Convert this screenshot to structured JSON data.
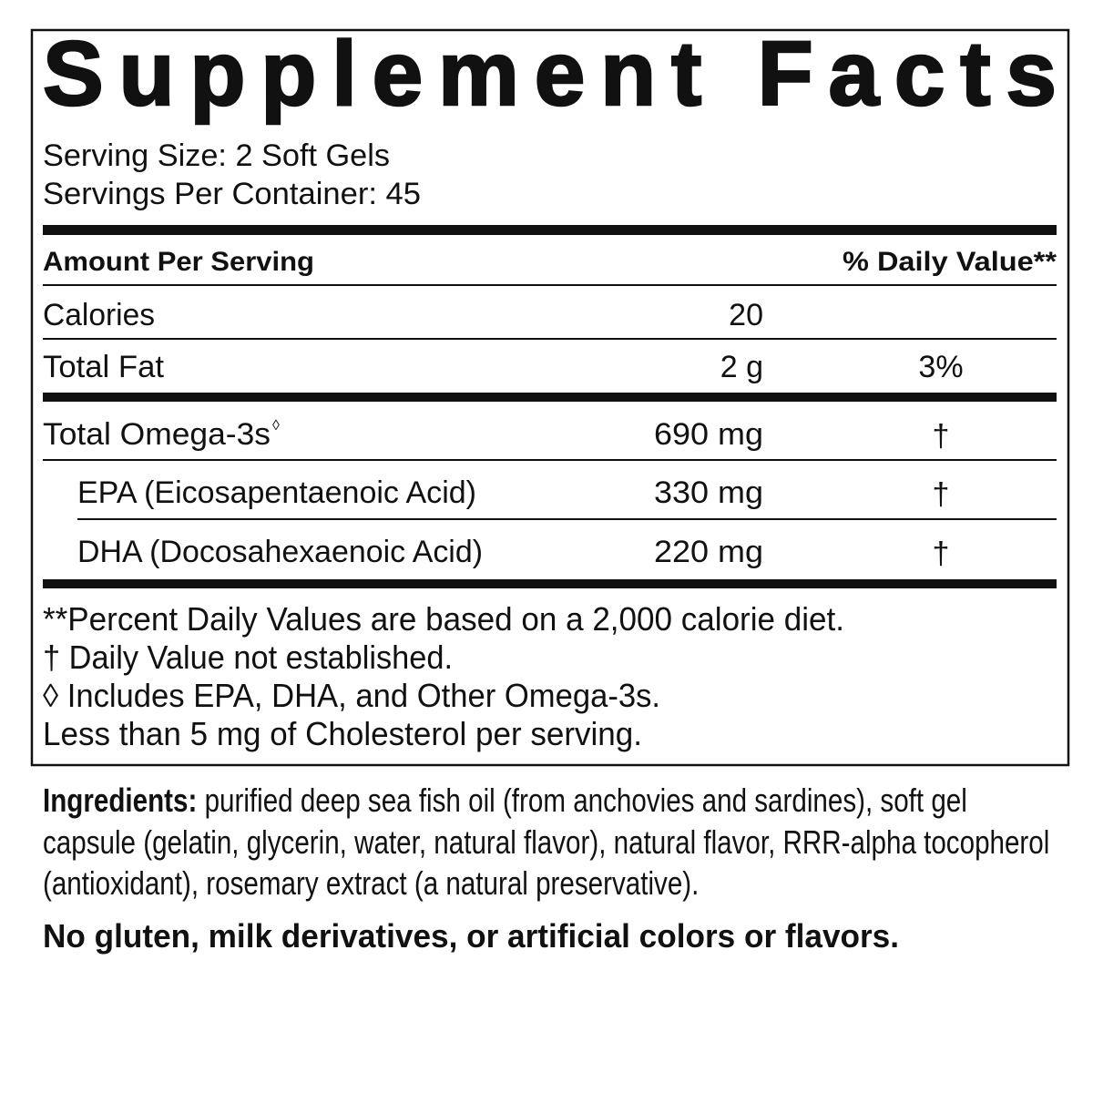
{
  "title": "Supplement Facts",
  "serving_size": "Serving Size: 2 Soft Gels",
  "servings_per_container": "Servings Per Container: 45",
  "table": {
    "header": {
      "amount": "Amount Per Serving",
      "daily_value": "% Daily Value**"
    },
    "rows": [
      {
        "name": "Calories",
        "amount": "20"
      },
      {
        "name": "Total Fat",
        "amount": "2 g",
        "daily_value": "3%"
      },
      {
        "name": "Total Omega-3s",
        "name_mark": "◊",
        "amount": "690 mg",
        "daily_value": "†"
      },
      {
        "name": "EPA (Eicosapentaenoic Acid)",
        "amount": "330 mg",
        "daily_value": "†"
      },
      {
        "name": "DHA (Docosahexaenoic Acid)",
        "amount": "220 mg",
        "daily_value": "†"
      }
    ]
  },
  "footnotes": [
    "**Percent Daily Values are based on a 2,000 calorie diet.",
    "† Daily Value not established.",
    "◊ Includes EPA, DHA, and Other Omega-3s.",
    "Less than 5 mg of Cholesterol per serving."
  ],
  "ingredients": {
    "label": "Ingredients:",
    "text": "purified deep sea fish oil (from anchovies and sardines), soft gel capsule (gelatin, glycerin, water, natural flavor), natural flavor, RRR-alpha tocopherol (antioxidant), rosemary extract (a natural preservative)."
  },
  "statement": "No gluten, milk derivatives, or artificial colors or flavors."
}
